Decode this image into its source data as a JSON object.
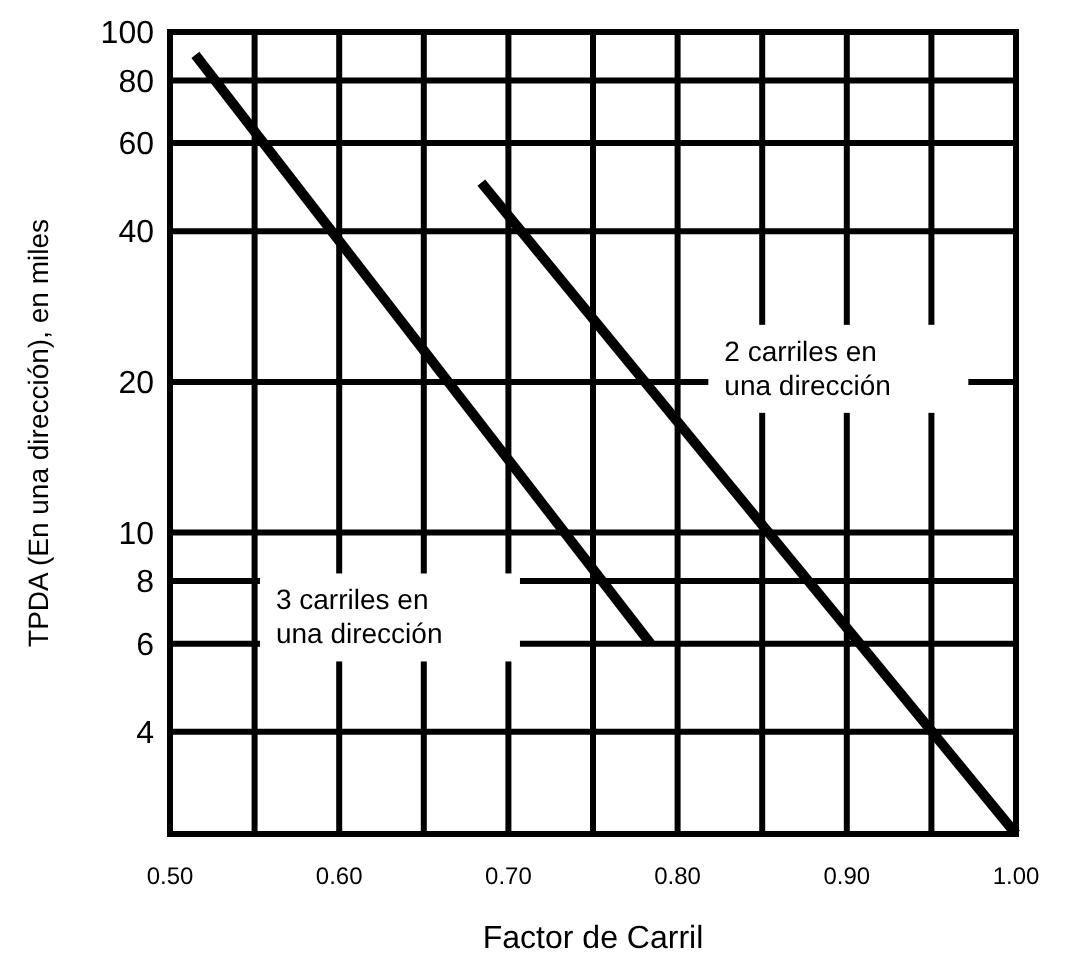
{
  "chart_data": {
    "type": "line",
    "xlabel": "Factor de Carril",
    "ylabel": "TPDA (En una dirección), en miles",
    "log": "y",
    "grid": true,
    "marker": "none",
    "line_style": "solid",
    "xlim": [
      0.5,
      1.0
    ],
    "ylim": [
      2.5,
      100
    ],
    "xticks": [
      {
        "value": 0.5,
        "label": "0.50"
      },
      {
        "value": 0.55,
        "label": null
      },
      {
        "value": 0.6,
        "label": "0.60"
      },
      {
        "value": 0.65,
        "label": null
      },
      {
        "value": 0.7,
        "label": "0.70"
      },
      {
        "value": 0.75,
        "label": null
      },
      {
        "value": 0.8,
        "label": "0.80"
      },
      {
        "value": 0.85,
        "label": null
      },
      {
        "value": 0.9,
        "label": "0.90"
      },
      {
        "value": 0.95,
        "label": null
      },
      {
        "value": 1.0,
        "label": "1.00"
      }
    ],
    "yticks": [
      100,
      80,
      60,
      40,
      20,
      10,
      8,
      6,
      4
    ],
    "series": [
      {
        "color": "#000000",
        "x": [
          0.515,
          0.784
        ],
        "values": [
          90,
          6
        ]
      },
      {
        "color": "#000000",
        "x": [
          0.684,
          1.0
        ],
        "values": [
          50,
          2.5
        ]
      }
    ],
    "annotations": [
      "3 carriles en una dirección",
      "2 carriles en una dirección"
    ]
  }
}
